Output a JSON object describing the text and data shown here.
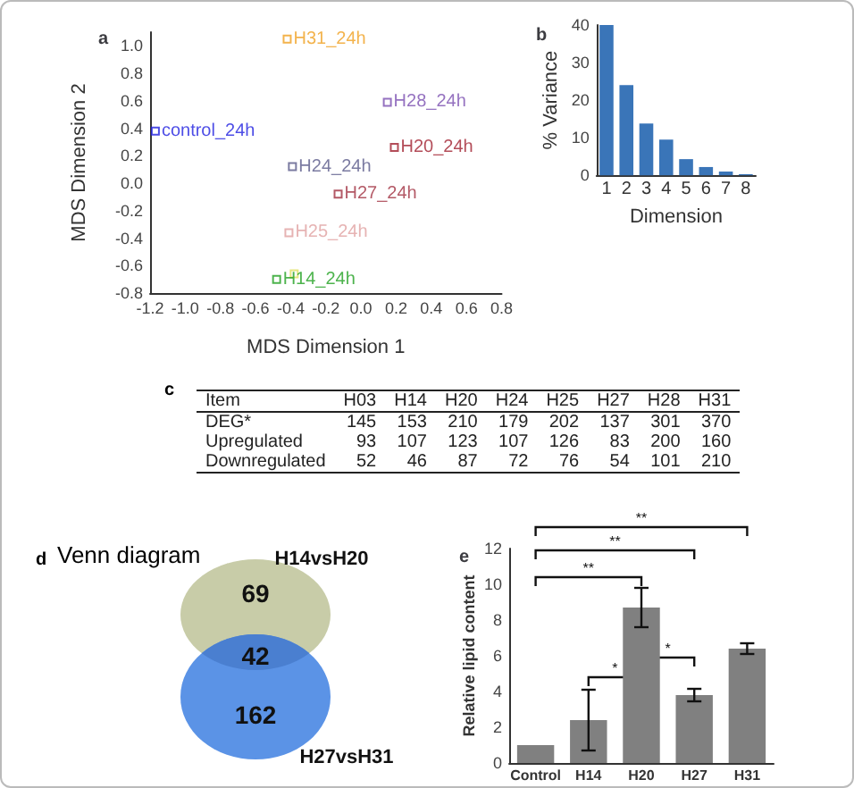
{
  "chart_data": [
    {
      "type": "scatter",
      "title": "a",
      "xlabel": "MDS Dimension 1",
      "ylabel": "MDS Dimension 2",
      "xlim": [
        -1.2,
        0.8
      ],
      "ylim": [
        -0.8,
        1.1
      ],
      "xticks": [
        -1.2,
        {
          "value": -1,
          "label": "-1.0"
        },
        -0.8,
        -0.6,
        -0.4,
        -0.2,
        {
          "value": 0,
          "label": "0.0"
        },
        0.2,
        0.4,
        0.6,
        0.8
      ],
      "yticks": [
        -0.8,
        -0.6,
        -0.4,
        -0.2,
        {
          "value": 0,
          "label": "0.0"
        },
        0.2,
        0.4,
        0.6,
        0.8,
        {
          "value": 1,
          "label": "1.0"
        }
      ],
      "marker": "square",
      "legend": false,
      "grid": false,
      "series": [
        {
          "name": "H31_24h",
          "color": "#f0a020",
          "x": [
            -0.42
          ],
          "values": [
            1.05
          ]
        },
        {
          "name": "H28_24h",
          "color": "#7b4fb0",
          "x": [
            0.15
          ],
          "values": [
            0.59
          ]
        },
        {
          "name": "control_24h",
          "color": "#2020e0",
          "x": [
            -1.17
          ],
          "values": [
            0.38
          ]
        },
        {
          "name": "H20_24h",
          "color": "#a02030",
          "x": [
            0.19
          ],
          "values": [
            0.26
          ]
        },
        {
          "name": "H24_24h",
          "color": "#5a5a8a",
          "x": [
            -0.39
          ],
          "values": [
            0.12
          ]
        },
        {
          "name": "H27_24h",
          "color": "#a03040",
          "x": [
            -0.13
          ],
          "values": [
            -0.08
          ]
        },
        {
          "name": "H25_24h",
          "color": "#e0a0a0",
          "x": [
            -0.41
          ],
          "values": [
            -0.36
          ]
        },
        {
          "color": "#e0e060",
          "x": [
            -0.38
          ],
          "values": [
            -0.66
          ]
        },
        {
          "name": "H14_24h",
          "color": "#20a020",
          "x": [
            -0.48
          ],
          "values": [
            -0.7
          ]
        }
      ]
    },
    {
      "type": "bar",
      "title": "b",
      "xlabel": "Dimension",
      "ylabel": "% Variance",
      "categories": [
        "1",
        "2",
        "3",
        "4",
        "5",
        "6",
        "7",
        "8"
      ],
      "values": [
        40,
        24,
        13.8,
        9.5,
        4.3,
        2.2,
        1,
        0.3
      ],
      "color": "#3a75b8",
      "ylim": [
        0,
        40
      ],
      "yticks": [
        0,
        10,
        20,
        30,
        40
      ],
      "grid": false,
      "legend": false
    },
    {
      "type": "heatmap",
      "title": "c",
      "ylabel": "Item",
      "categories": [
        "H03",
        "H14",
        "H20",
        "H24",
        "H25",
        "H27",
        "H28",
        "H31"
      ],
      "y_categories": [
        "DEG*",
        "Upregulated",
        "Downregulated"
      ],
      "data_labels": true,
      "cells": [
        [
          145,
          153,
          210,
          179,
          202,
          137,
          301,
          370
        ],
        [
          93,
          107,
          123,
          107,
          126,
          83,
          200,
          160
        ],
        [
          52,
          46,
          87,
          72,
          76,
          54,
          101,
          210
        ]
      ]
    },
    {
      "type": "other",
      "title": "d",
      "subtitle": "Venn diagram",
      "categories": [
        "H14vsH20",
        null,
        "H27vsH31"
      ],
      "values": [
        69,
        42,
        162
      ],
      "data_labels": true,
      "colors": [
        "#c8cca8",
        "#4a7fd0",
        "#5b93e6"
      ]
    },
    {
      "type": "bar",
      "title": "e",
      "ylabel": "Relative lipid content",
      "categories": [
        "Control",
        "H14",
        "H20",
        "H27",
        "H31"
      ],
      "values": [
        1.0,
        2.4,
        8.7,
        3.8,
        6.4
      ],
      "errors": [
        null,
        1.7,
        1.1,
        0.35,
        0.3
      ],
      "color": "#808080",
      "ylim": [
        0,
        12
      ],
      "yticks": [
        0,
        2,
        4,
        6,
        8,
        10,
        12
      ],
      "grid": false,
      "legend": false,
      "annotations": [
        "**",
        "**",
        "**",
        "*",
        "*"
      ]
    }
  ]
}
